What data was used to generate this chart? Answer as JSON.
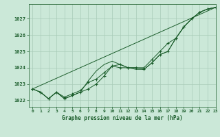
{
  "title": "Graphe pression niveau de la mer (hPa)",
  "background_color": "#cbe8d8",
  "grid_color": "#a8cbb8",
  "line_color": "#1a5c2a",
  "xlim": [
    -0.5,
    23
  ],
  "ylim": [
    1021.6,
    1027.9
  ],
  "yticks": [
    1022,
    1023,
    1024,
    1025,
    1026,
    1027
  ],
  "ytick_top": 1027,
  "xticks": [
    0,
    1,
    2,
    3,
    4,
    5,
    6,
    7,
    8,
    9,
    10,
    11,
    12,
    13,
    14,
    15,
    16,
    17,
    18,
    19,
    20,
    21,
    22,
    23
  ],
  "series": [
    {
      "x": [
        0,
        1,
        2,
        3,
        4,
        5,
        6,
        7,
        8,
        9,
        10,
        11,
        12,
        13,
        14,
        15,
        16,
        17,
        18,
        19,
        20,
        21,
        22,
        23
      ],
      "y": [
        1022.7,
        1022.5,
        1022.1,
        1022.5,
        1022.1,
        1022.3,
        1022.5,
        1022.7,
        1023.0,
        1023.5,
        1024.1,
        1024.2,
        1024.0,
        1024.0,
        1023.9,
        1024.3,
        1024.8,
        1025.0,
        1025.8,
        1026.5,
        1027.0,
        1027.4,
        1027.6,
        1027.7
      ],
      "with_markers": true
    },
    {
      "x": [
        0,
        1,
        2,
        3,
        4,
        5,
        6,
        7,
        8,
        9,
        10,
        11,
        12,
        13,
        14,
        15,
        16,
        17,
        18,
        19,
        20,
        21,
        22,
        23
      ],
      "y": [
        1022.7,
        1022.5,
        1022.1,
        1022.5,
        1022.1,
        1022.3,
        1022.5,
        1023.2,
        1023.8,
        1024.2,
        1024.4,
        1024.2,
        1024.0,
        1023.9,
        1023.9,
        1024.3,
        1024.8,
        1025.0,
        1025.8,
        1026.5,
        1027.0,
        1027.4,
        1027.6,
        1027.7
      ],
      "with_markers": false
    },
    {
      "x": [
        0,
        23
      ],
      "y": [
        1022.7,
        1027.7
      ],
      "with_markers": false
    },
    {
      "x": [
        0,
        1,
        2,
        3,
        4,
        5,
        6,
        7,
        8,
        9,
        10,
        11,
        12,
        13,
        14,
        15,
        16,
        17,
        18,
        19,
        20,
        21,
        22,
        23
      ],
      "y": [
        1022.7,
        1022.5,
        1022.1,
        1022.5,
        1022.2,
        1022.4,
        1022.6,
        1023.1,
        1023.3,
        1023.7,
        1024.1,
        1024.0,
        1024.0,
        1024.0,
        1024.0,
        1024.5,
        1025.0,
        1025.5,
        1025.8,
        1026.5,
        1027.0,
        1027.4,
        1027.6,
        1027.7
      ],
      "with_markers": true
    }
  ]
}
